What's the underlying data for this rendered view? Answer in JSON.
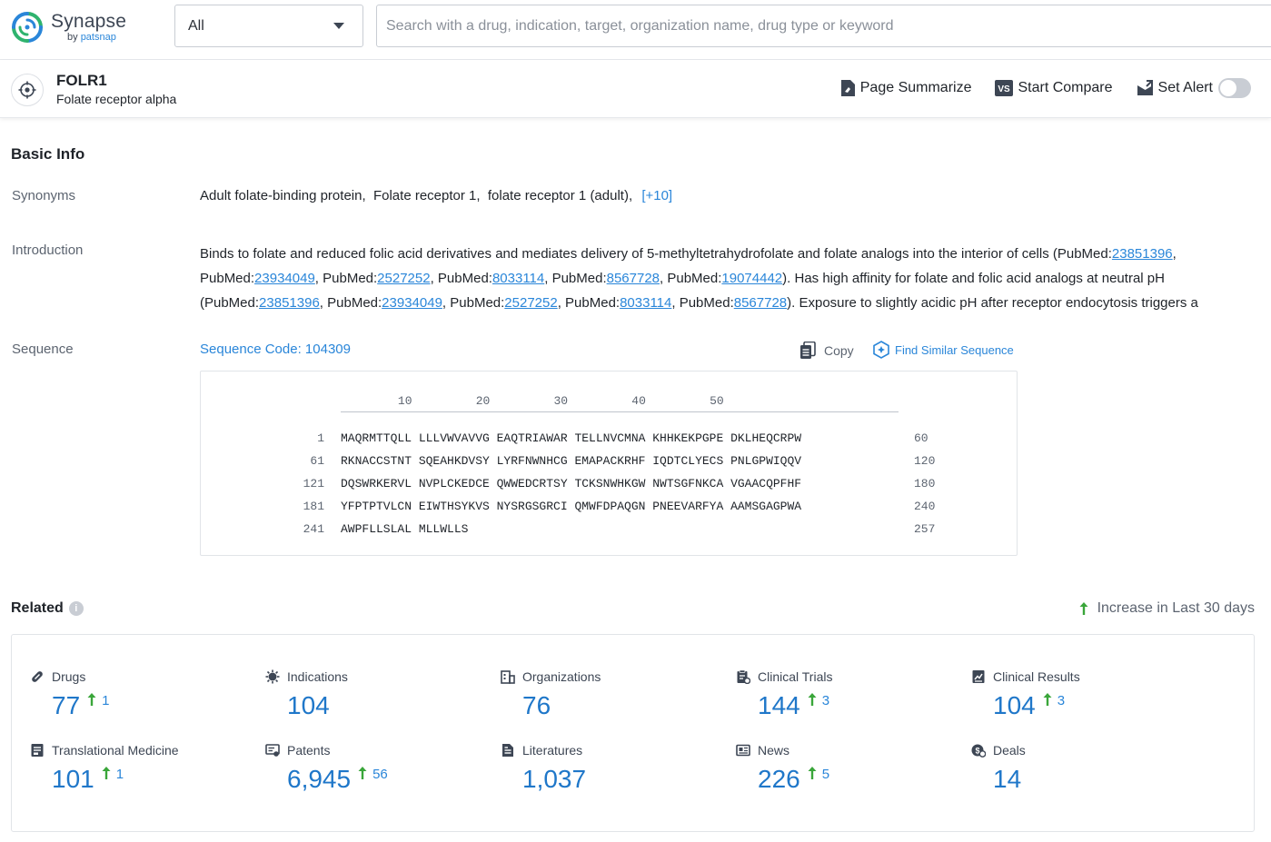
{
  "header": {
    "logo": {
      "name": "Synapse",
      "by": "by",
      "brand": "patsnap"
    },
    "scope_select": {
      "value": "All"
    },
    "search": {
      "placeholder": "Search with a drug, indication, target, organization name, drug type or keyword"
    }
  },
  "target": {
    "name": "FOLR1",
    "full_name": "Folate receptor alpha",
    "actions": {
      "summarize": "Page Summarize",
      "compare": "Start Compare",
      "alert": "Set Alert"
    }
  },
  "basic_info": {
    "title": "Basic Info",
    "synonyms_label": "Synonyms",
    "synonyms": [
      "Adult folate-binding protein,",
      "Folate receptor 1,",
      "folate receptor 1 (adult),"
    ],
    "synonyms_more": "[+10]",
    "introduction_label": "Introduction",
    "introduction": [
      {
        "text": "Binds to folate and reduced folic acid derivatives and mediates delivery of 5-methyltetrahydrofolate and folate analogs into the interior of cells (PubMed:"
      },
      {
        "link": "23851396"
      },
      {
        "text": ", PubMed:"
      },
      {
        "link": "23934049"
      },
      {
        "text": ", PubMed:"
      },
      {
        "link": "2527252"
      },
      {
        "text": ", PubMed:"
      },
      {
        "link": "8033114"
      },
      {
        "text": ", PubMed:"
      },
      {
        "link": "8567728"
      },
      {
        "text": ", PubMed:"
      },
      {
        "link": "19074442"
      },
      {
        "text": "). Has high affinity for folate and folic acid analogs at neutral pH (PubMed:"
      },
      {
        "link": "23851396"
      },
      {
        "text": ", PubMed:"
      },
      {
        "link": "23934049"
      },
      {
        "text": ", PubMed:"
      },
      {
        "link": "2527252"
      },
      {
        "text": ", PubMed:"
      },
      {
        "link": "8033114"
      },
      {
        "text": ", PubMed:"
      },
      {
        "link": "8567728"
      },
      {
        "text": "). Exposure to slightly acidic pH after receptor endocytosis triggers a"
      }
    ],
    "sequence_label": "Sequence",
    "sequence_code": "Sequence Code: 104309",
    "copy_label": "Copy",
    "find_similar_label": "Find Similar Sequence",
    "ruler": [
      "10",
      "20",
      "30",
      "40",
      "50"
    ],
    "sequence_rows": [
      {
        "start": "1",
        "seq": "MAQRMTTQLL LLLVWVAVVG EAQTRIAWAR TELLNVCMNA KHHKEKPGPE DKLHEQCRPW",
        "end": "60"
      },
      {
        "start": "61",
        "seq": "RKNACCSTNT SQEAHKDVSY LYRFNWNHCG EMAPACKRHF IQDTCLYECS PNLGPWIQQV",
        "end": "120"
      },
      {
        "start": "121",
        "seq": "DQSWRKERVL NVPLCKEDCE QWWEDCRTSY TCKSNWHKGW NWTSGFNKCA VGAACQPFHF",
        "end": "180"
      },
      {
        "start": "181",
        "seq": "YFPTPTVLCN EIWTHSYKVS NYSRGSGRCI QMWFDPAQGN PNEEVARFYA AAMSGAGPWA",
        "end": "240"
      },
      {
        "start": "241",
        "seq": "AWPFLLSLAL MLLWLLS",
        "end": "257"
      }
    ]
  },
  "related": {
    "title": "Related",
    "info_icon": "i",
    "legend": "Increase in Last 30 days",
    "stats": [
      {
        "label": "Drugs",
        "value": "77",
        "increase": "1",
        "icon": "pill-icon"
      },
      {
        "label": "Indications",
        "value": "104",
        "increase": "",
        "icon": "virus-icon"
      },
      {
        "label": "Organizations",
        "value": "76",
        "increase": "",
        "icon": "building-icon"
      },
      {
        "label": "Clinical Trials",
        "value": "144",
        "increase": "3",
        "icon": "clipboard-icon"
      },
      {
        "label": "Clinical Results",
        "value": "104",
        "increase": "3",
        "icon": "chart-doc-icon"
      },
      {
        "label": "Translational Medicine",
        "value": "101",
        "increase": "1",
        "icon": "doc-icon"
      },
      {
        "label": "Patents",
        "value": "6,945",
        "increase": "56",
        "icon": "patent-icon"
      },
      {
        "label": "Literatures",
        "value": "1,037",
        "increase": "",
        "icon": "book-icon"
      },
      {
        "label": "News",
        "value": "226",
        "increase": "5",
        "icon": "news-icon"
      },
      {
        "label": "Deals",
        "value": "14",
        "increase": "",
        "icon": "deal-icon"
      }
    ]
  },
  "colors": {
    "link": "#2a86d9",
    "value": "#1f77c9",
    "increase_arrow": "#3aa63a",
    "logo_green": "#2fb36e",
    "logo_blue": "#2a86d9"
  }
}
